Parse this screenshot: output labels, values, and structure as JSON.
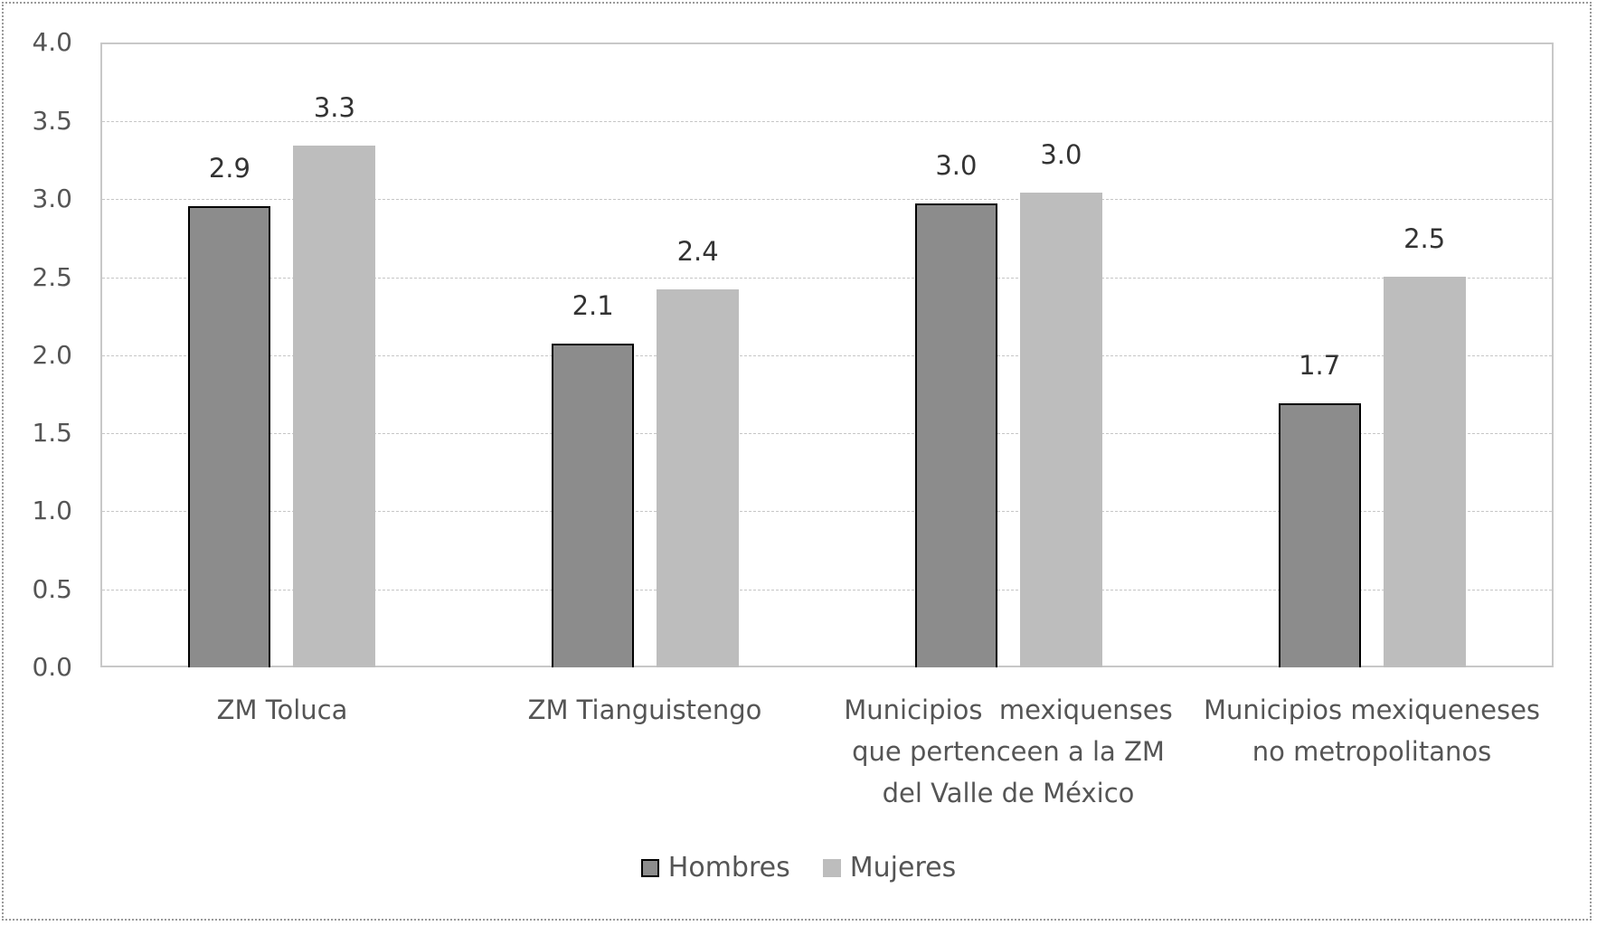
{
  "chart_data": {
    "type": "bar",
    "title": "",
    "xlabel": "",
    "ylabel": "",
    "ylim": [
      0,
      4.0
    ],
    "yticks": [
      "0.0",
      "0.5",
      "1.0",
      "1.5",
      "2.0",
      "2.5",
      "3.0",
      "3.5",
      "4.0"
    ],
    "grid": true,
    "legend_position": "bottom",
    "categories": [
      "ZM Toluca",
      "ZM Tianguistengo",
      "Municipios  mexiquenses que pertenceen a la ZM del Valle de México",
      "Municipios mexiqueneses no metropolitanos"
    ],
    "series": [
      {
        "name": "Hombres",
        "color": "#8c8c8c",
        "values": [
          2.9,
          2.1,
          3.0,
          1.7
        ],
        "plotted_heights": [
          2.95,
          2.07,
          2.97,
          1.69
        ]
      },
      {
        "name": "Mujeres",
        "color": "#bdbdbd",
        "values": [
          3.3,
          2.4,
          3.0,
          2.5
        ],
        "plotted_heights": [
          3.34,
          2.42,
          3.04,
          2.5
        ]
      }
    ]
  },
  "axis": {
    "yticks": [
      "0.0",
      "0.5",
      "1.0",
      "1.5",
      "2.0",
      "2.5",
      "3.0",
      "3.5",
      "4.0"
    ]
  },
  "categories": [
    {
      "lines": [
        "ZM Toluca"
      ]
    },
    {
      "lines": [
        "ZM Tianguistengo"
      ]
    },
    {
      "lines": [
        "Municipios  mexiquenses",
        "que pertenceen a la ZM",
        "del Valle de México"
      ]
    },
    {
      "lines": [
        "Municipios mexiqueneses",
        "no metropolitanos"
      ]
    }
  ],
  "labels": {
    "hombres": [
      "2.9",
      "2.1",
      "3.0",
      "1.7"
    ],
    "mujeres": [
      "3.3",
      "2.4",
      "3.0",
      "2.5"
    ]
  },
  "legend": {
    "hombres": "Hombres",
    "mujeres": "Mujeres"
  }
}
